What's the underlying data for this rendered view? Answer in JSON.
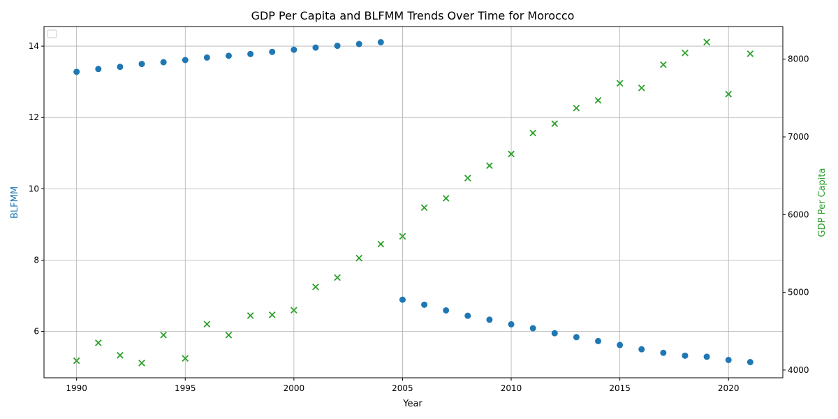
{
  "chart_data": {
    "type": "scatter",
    "title": "GDP Per Capita and BLFMM Trends Over Time for Morocco",
    "xlabel": "Year",
    "ylabel_left": "BLFMM",
    "ylabel_right": "GDP Per Capita",
    "xlim": [
      1988.5,
      2022.5
    ],
    "ylim_left": [
      4.7,
      14.55
    ],
    "ylim_right": [
      3900,
      8420
    ],
    "x_ticks": [
      1990,
      1995,
      2000,
      2005,
      2010,
      2015,
      2020
    ],
    "y_left_ticks": [
      6,
      8,
      10,
      12,
      14
    ],
    "y_right_ticks": [
      4000,
      5000,
      6000,
      7000,
      8000
    ],
    "grid": true,
    "legend": "top-left (empty)",
    "colors": {
      "blfmm": "#1f77b4",
      "gdp": "#2ca02c"
    },
    "series": [
      {
        "name": "BLFMM",
        "axis": "left",
        "marker": "circle",
        "x": [
          1990,
          1991,
          1992,
          1993,
          1994,
          1995,
          1996,
          1997,
          1998,
          1999,
          2000,
          2001,
          2002,
          2003,
          2004,
          2005,
          2006,
          2007,
          2008,
          2009,
          2010,
          2011,
          2012,
          2013,
          2014,
          2015,
          2016,
          2017,
          2018,
          2019,
          2020,
          2021
        ],
        "y": [
          13.28,
          13.36,
          13.42,
          13.5,
          13.55,
          13.61,
          13.68,
          13.73,
          13.78,
          13.84,
          13.9,
          13.96,
          14.01,
          14.06,
          14.11,
          6.89,
          6.75,
          6.59,
          6.44,
          6.33,
          6.2,
          6.09,
          5.95,
          5.84,
          5.73,
          5.62,
          5.5,
          5.4,
          5.32,
          5.29,
          5.2,
          5.14
        ]
      },
      {
        "name": "GDP Per Capita",
        "axis": "right",
        "marker": "x",
        "x": [
          1990,
          1991,
          1992,
          1993,
          1994,
          1995,
          1996,
          1997,
          1998,
          1999,
          2000,
          2001,
          2002,
          2003,
          2004,
          2005,
          2006,
          2007,
          2008,
          2009,
          2010,
          2011,
          2012,
          2013,
          2014,
          2015,
          2016,
          2017,
          2018,
          2019,
          2020,
          2021
        ],
        "y": [
          4120,
          4350,
          4190,
          4090,
          4450,
          4150,
          4590,
          4450,
          4700,
          4710,
          4770,
          5070,
          5190,
          5440,
          5620,
          5720,
          6090,
          6210,
          6470,
          6630,
          6780,
          7050,
          7170,
          7370,
          7470,
          7690,
          7630,
          7930,
          8080,
          8220,
          7550,
          8070
        ]
      }
    ]
  }
}
